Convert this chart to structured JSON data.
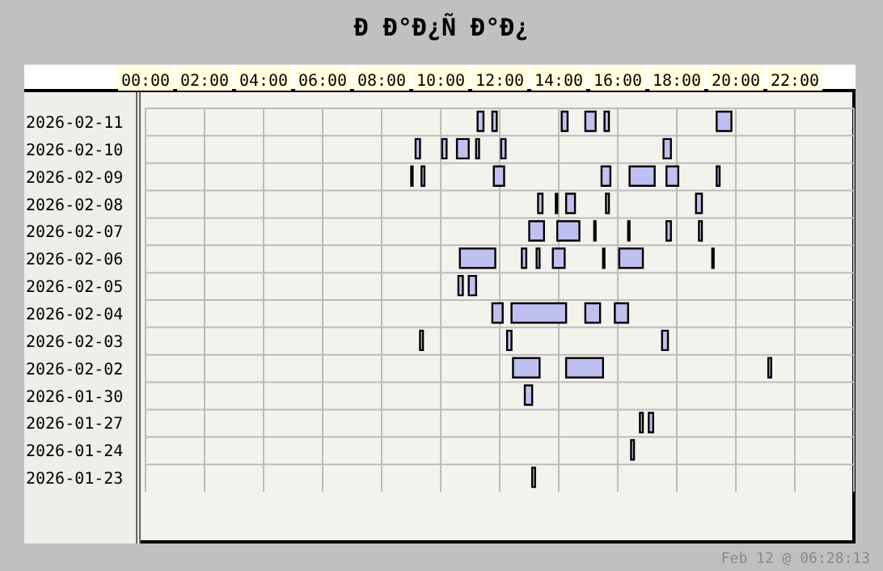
{
  "chart_data": {
    "type": "bar",
    "orientation": "horizontal",
    "title": "Ð Ð°Ð¿Ñ Ð°Ð¿",
    "categories": [
      "2026-02-11",
      "2026-02-10",
      "2026-02-09",
      "2026-02-08",
      "2026-02-07",
      "2026-02-06",
      "2026-02-05",
      "2026-02-04",
      "2026-02-03",
      "2026-02-02",
      "2026-01-30",
      "2026-01-27",
      "2026-01-24",
      "2026-01-23"
    ],
    "xlim": [
      0,
      24
    ],
    "xticks": [
      {
        "value": 0,
        "label": "00:00"
      },
      {
        "value": 2,
        "label": "02:00"
      },
      {
        "value": 4,
        "label": "04:00"
      },
      {
        "value": 6,
        "label": "06:00"
      },
      {
        "value": 8,
        "label": "08:00"
      },
      {
        "value": 10,
        "label": "10:00"
      },
      {
        "value": 12,
        "label": "12:00"
      },
      {
        "value": 14,
        "label": "14:00"
      },
      {
        "value": 16,
        "label": "16:00"
      },
      {
        "value": 18,
        "label": "18:00"
      },
      {
        "value": 20,
        "label": "20:00"
      },
      {
        "value": 22,
        "label": "22:00"
      }
    ],
    "grid": true,
    "legend": false,
    "annotations": [
      "Feb 12 @ 06:28:13"
    ],
    "series": [
      {
        "color": "#c0c0f0",
        "base": [
          11.25,
          9.15,
          9.0,
          13.3,
          13.0,
          10.65,
          10.6,
          11.75,
          9.3,
          12.45,
          12.85,
          16.75,
          16.45,
          13.1
        ],
        "values": [
          0.2,
          0.15,
          0.05,
          0.15,
          0.5,
          1.2,
          0.15,
          0.35,
          0.1,
          0.9,
          0.25,
          0.1,
          0.1,
          0.1
        ]
      },
      {
        "color": "#c0c0f0",
        "base": [
          11.75,
          10.05,
          9.35,
          13.9,
          13.95,
          12.75,
          10.95,
          12.4,
          12.25,
          14.25,
          null,
          17.05,
          null,
          null
        ],
        "values": [
          0.15,
          0.15,
          0.1,
          0.05,
          0.75,
          0.15,
          0.25,
          1.85,
          0.15,
          1.25,
          null,
          0.15,
          null,
          null
        ]
      },
      {
        "color": "#c0c0f0",
        "base": [
          14.1,
          10.55,
          11.8,
          14.25,
          15.2,
          13.25,
          null,
          14.9,
          17.5,
          21.1,
          null,
          null,
          null,
          null
        ],
        "values": [
          0.2,
          0.4,
          0.35,
          0.3,
          0.05,
          0.1,
          null,
          0.5,
          0.2,
          0.1,
          null,
          null,
          null,
          null
        ]
      },
      {
        "color": "#c0c0f0",
        "base": [
          14.9,
          11.2,
          15.45,
          15.6,
          16.35,
          13.8,
          null,
          15.9,
          null,
          null,
          null,
          null,
          null,
          null
        ],
        "values": [
          0.35,
          0.1,
          0.3,
          0.1,
          0.05,
          0.4,
          null,
          0.45,
          null,
          null,
          null,
          null,
          null,
          null
        ]
      },
      {
        "color": "#c0c0f0",
        "base": [
          15.55,
          12.05,
          16.4,
          18.65,
          17.65,
          15.5,
          null,
          null,
          null,
          null,
          null,
          null,
          null,
          null
        ],
        "values": [
          0.15,
          0.15,
          0.85,
          0.2,
          0.15,
          0.05,
          null,
          null,
          null,
          null,
          null,
          null,
          null,
          null
        ]
      },
      {
        "color": "#c0c0f0",
        "base": [
          19.35,
          17.55,
          17.65,
          null,
          18.75,
          16.05,
          null,
          null,
          null,
          null,
          null,
          null,
          null,
          null
        ],
        "values": [
          0.5,
          0.25,
          0.4,
          null,
          0.1,
          0.8,
          null,
          null,
          null,
          null,
          null,
          null,
          null,
          null
        ]
      },
      {
        "color": "#c0c0f0",
        "base": [
          null,
          null,
          19.35,
          null,
          null,
          19.2,
          null,
          null,
          null,
          null,
          null,
          null,
          null,
          null
        ],
        "values": [
          null,
          null,
          0.1,
          null,
          null,
          0.05,
          null,
          null,
          null,
          null,
          null,
          null,
          null,
          null
        ]
      }
    ]
  }
}
